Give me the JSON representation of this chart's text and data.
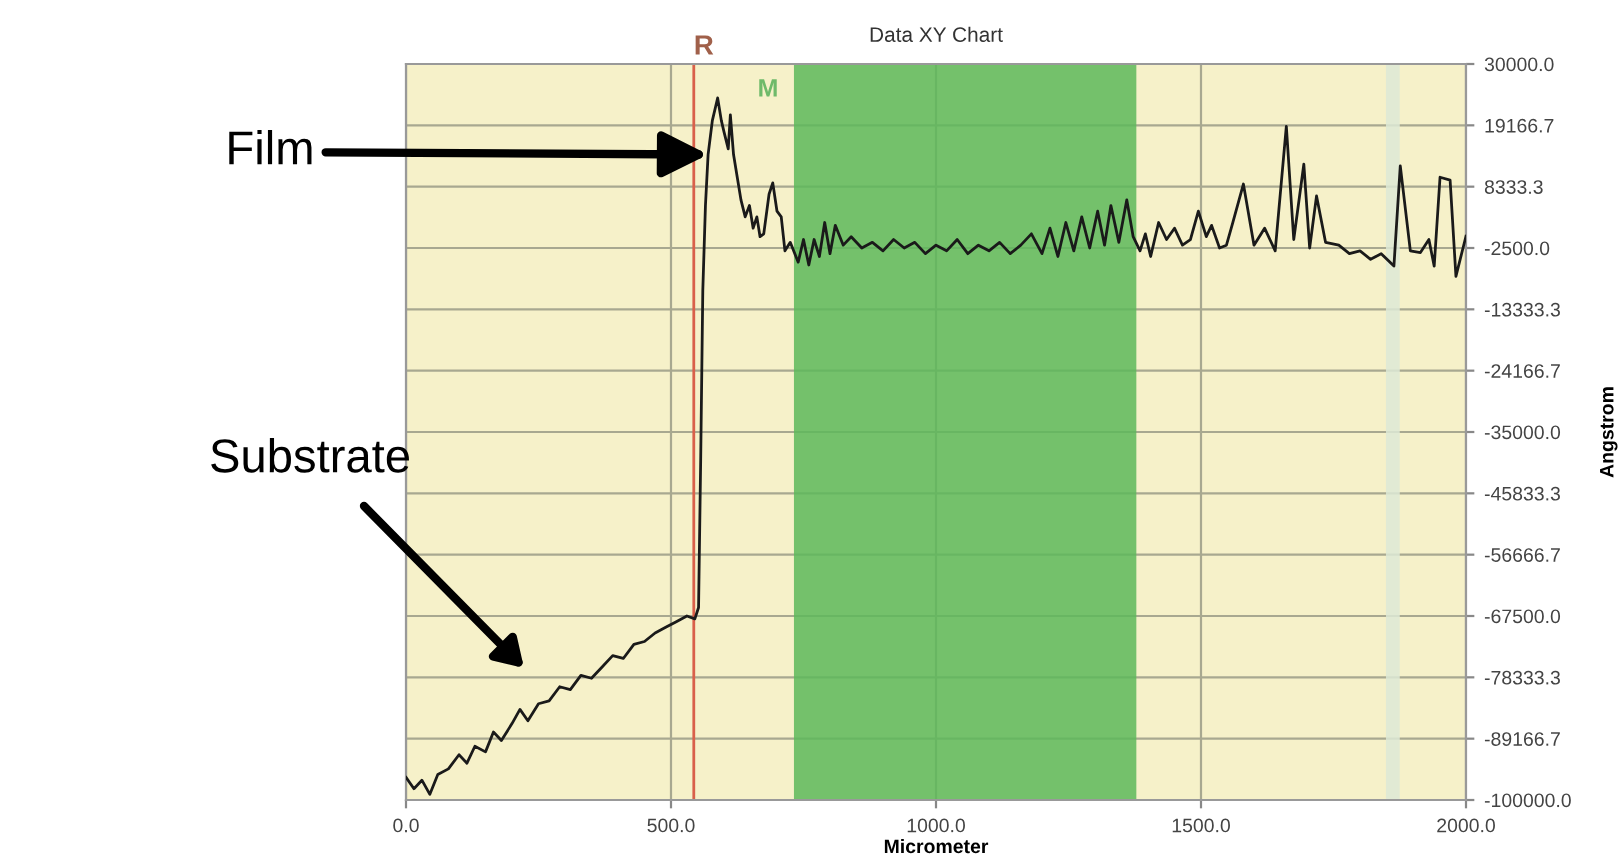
{
  "chart_data": {
    "type": "line",
    "title": "Data XY Chart",
    "xlabel": "Micrometer",
    "ylabel": "Angstrom",
    "x": [
      0,
      15,
      30,
      45,
      60,
      80,
      100,
      115,
      130,
      150,
      165,
      180,
      200,
      215,
      230,
      250,
      270,
      290,
      310,
      330,
      350,
      370,
      390,
      410,
      430,
      450,
      470,
      490,
      510,
      530,
      545,
      552,
      556,
      560,
      565,
      570,
      578,
      588,
      595,
      600,
      608,
      612,
      618,
      625,
      632,
      640,
      648,
      655,
      662,
      668,
      675,
      685,
      692,
      700,
      708,
      715,
      725,
      740,
      750,
      760,
      770,
      780,
      790,
      800,
      810,
      825,
      840,
      860,
      880,
      900,
      920,
      940,
      960,
      980,
      1000,
      1020,
      1040,
      1060,
      1080,
      1100,
      1120,
      1140,
      1160,
      1180,
      1200,
      1215,
      1230,
      1245,
      1260,
      1275,
      1290,
      1305,
      1318,
      1330,
      1345,
      1360,
      1372,
      1385,
      1395,
      1405,
      1420,
      1435,
      1450,
      1465,
      1480,
      1495,
      1510,
      1520,
      1535,
      1548,
      1560,
      1580,
      1600,
      1620,
      1640,
      1661,
      1675,
      1694,
      1705,
      1718,
      1735,
      1760,
      1780,
      1800,
      1820,
      1840,
      1864,
      1876,
      1895,
      1914,
      1930,
      1940,
      1951,
      1970,
      1981,
      2000
    ],
    "series": [
      {
        "color": "#1a1a1a",
        "values": [
          -96000,
          -98000,
          -96500,
          -99000,
          -95500,
          -94500,
          -92000,
          -93500,
          -90500,
          -91500,
          -88000,
          -89500,
          -86500,
          -84000,
          -86000,
          -83000,
          -82500,
          -80000,
          -80500,
          -78000,
          -78500,
          -76500,
          -74500,
          -75000,
          -72500,
          -72000,
          -70500,
          -69500,
          -68500,
          -67500,
          -68000,
          -66000,
          -40000,
          -10000,
          5000,
          14000,
          20000,
          24000,
          20000,
          18000,
          15000,
          21000,
          14000,
          10000,
          6000,
          3000,
          5000,
          1000,
          3000,
          -500,
          0,
          7000,
          9000,
          4000,
          3000,
          -3000,
          -1500,
          -5000,
          -1000,
          -5500,
          -1000,
          -4000,
          2000,
          -3500,
          1500,
          -2000,
          -500,
          -2500,
          -1500,
          -3000,
          -1000,
          -2500,
          -1500,
          -3500,
          -2000,
          -3000,
          -1000,
          -3500,
          -2000,
          -3000,
          -1500,
          -3500,
          -2000,
          0,
          -3500,
          1000,
          -4000,
          2000,
          -3000,
          3000,
          -2500,
          4000,
          -2000,
          5000,
          -1500,
          6000,
          -500,
          -3000,
          0,
          -4000,
          2000,
          -1000,
          1000,
          -2000,
          -1000,
          4000,
          -500,
          1500,
          -2500,
          -2000,
          2000,
          8800,
          -2000,
          1000,
          -3000,
          19000,
          -1000,
          12300,
          -2500,
          6700,
          -1500,
          -2000,
          -3500,
          -3000,
          -4500,
          -3500,
          -5700,
          12000,
          -3000,
          -3300,
          -1000,
          -5700,
          10000,
          9500,
          -7500,
          -400
        ]
      }
    ],
    "xlim": [
      0,
      2000
    ],
    "ylim": [
      -100000,
      30000
    ],
    "xticks": [
      {
        "value": 0,
        "label": "0.0"
      },
      {
        "value": 500,
        "label": "500.0"
      },
      {
        "value": 1000,
        "label": "1000.0"
      },
      {
        "value": 1500,
        "label": "1500.0"
      },
      {
        "value": 2000,
        "label": "2000.0"
      }
    ],
    "yticks": [
      {
        "value": 30000,
        "label": "30000.0"
      },
      {
        "value": 19166.7,
        "label": "19166.7"
      },
      {
        "value": 8333.3,
        "label": "8333.3"
      },
      {
        "value": -2500,
        "label": "-2500.0"
      },
      {
        "value": -13333.3,
        "label": "-13333.3"
      },
      {
        "value": -24166.7,
        "label": "-24166.7"
      },
      {
        "value": -35000,
        "label": "-35000.0"
      },
      {
        "value": -45833.3,
        "label": "-45833.3"
      },
      {
        "value": -56666.7,
        "label": "-56666.7"
      },
      {
        "value": -67500,
        "label": "-67500.0"
      },
      {
        "value": -78333.3,
        "label": "-78333.3"
      },
      {
        "value": -89166.7,
        "label": "-89166.7"
      },
      {
        "value": -100000,
        "label": "-100000.0"
      }
    ],
    "grid": true,
    "ref_lines": [
      {
        "axis": "x",
        "value": 543,
        "label": "R",
        "color": "#d9604a"
      }
    ],
    "bands": [
      {
        "axis": "x",
        "from": 732,
        "to": 1378,
        "color": "#5db85a"
      },
      {
        "axis": "x",
        "from": 1849,
        "to": 1875,
        "color": "#dde9d6"
      }
    ],
    "annotations": [
      "M",
      {
        "text": "Film",
        "x": 570,
        "y": 14000
      },
      "Substrate"
    ]
  }
}
